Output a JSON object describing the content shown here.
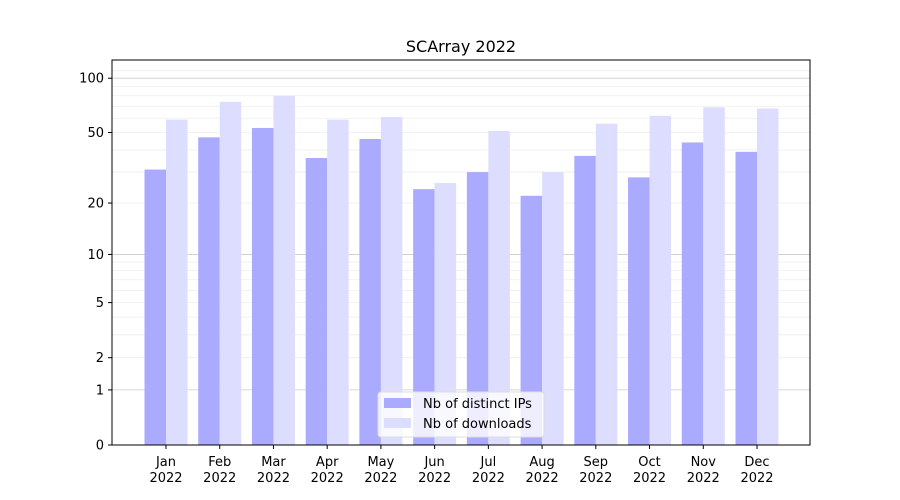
{
  "chart_data": {
    "type": "bar",
    "title": "SCArray 2022",
    "xlabel": "",
    "ylabel": "",
    "yscale": "log(1+y)",
    "ylim": [
      0,
      120
    ],
    "yticks": [
      0,
      1,
      2,
      5,
      10,
      20,
      50,
      100
    ],
    "grid": true,
    "legend_position": "bottom-center",
    "categories": [
      "Jan\n2022",
      "Feb\n2022",
      "Mar\n2022",
      "Apr\n2022",
      "May\n2022",
      "Jun\n2022",
      "Jul\n2022",
      "Aug\n2022",
      "Sep\n2022",
      "Oct\n2022",
      "Nov\n2022",
      "Dec\n2022"
    ],
    "series": [
      {
        "name": "Nb of distinct IPs",
        "color": "#aaaaff",
        "values": [
          31,
          47,
          53,
          36,
          46,
          24,
          30,
          22,
          37,
          28,
          44,
          39
        ]
      },
      {
        "name": "Nb of downloads",
        "color": "#ddddff",
        "values": [
          59,
          74,
          80,
          59,
          61,
          26,
          51,
          30,
          56,
          62,
          69,
          68
        ]
      }
    ]
  }
}
